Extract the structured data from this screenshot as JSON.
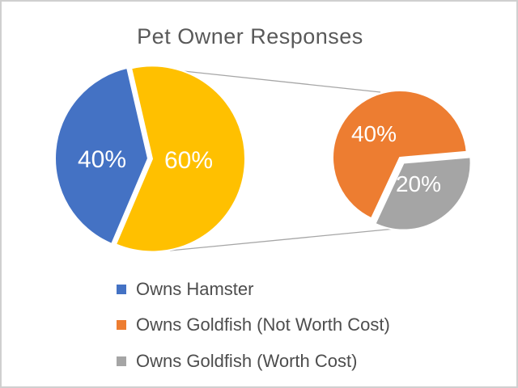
{
  "chart_data": {
    "type": "pie",
    "subtype": "pie-of-pie",
    "title": "Pet Owner Responses",
    "main_pie": {
      "values": [
        40,
        60
      ],
      "labels": [
        "40%",
        "60%"
      ],
      "colors": [
        "#4472C4",
        "#FFC000"
      ]
    },
    "secondary_pie": {
      "values": [
        40,
        20
      ],
      "labels": [
        "40%",
        "20%"
      ],
      "colors": [
        "#ED7D31",
        "#A5A5A5"
      ]
    },
    "legend": [
      {
        "label": "Owns Hamster",
        "color": "#4472C4"
      },
      {
        "label": "Owns Goldfish (Not Worth Cost)",
        "color": "#ED7D31"
      },
      {
        "label": "Owns Goldfish (Worth Cost)",
        "color": "#A5A5A5"
      }
    ],
    "legend_position": "bottom-left",
    "slice_border_color": "#FFFFFF",
    "connector_color": "#A6A6A6",
    "title_color": "#595959",
    "legend_text_color": "#4D4D4D",
    "label_text_color": "#FFFFFF"
  }
}
